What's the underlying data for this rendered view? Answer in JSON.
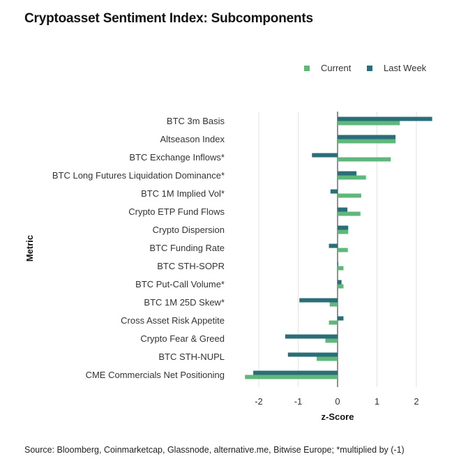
{
  "title": "Cryptoasset Sentiment Index: Subcomponents",
  "source": "Source: Bloomberg, Coinmarketcap, Glassnode, alternative.me, Bitwise Europe; *multiplied by (-1)",
  "colors": {
    "current": "#5fb77c",
    "last_week": "#2a6f77",
    "grid": "#e3e3e3",
    "axis": "#222222"
  },
  "chart_data": {
    "type": "bar",
    "orientation": "horizontal",
    "xlabel": "z-Score",
    "ylabel": "Metric",
    "xlim": [
      -2.25,
      2.45
    ],
    "xticks": [
      -2,
      -1,
      0,
      1,
      2
    ],
    "xtick_labels": [
      "-2",
      "-1",
      "0",
      "1",
      "2"
    ],
    "grid": "vertical",
    "legend": "top-right",
    "categories": [
      "BTC 3m Basis",
      "Altseason Index",
      "BTC Exchange Inflows*",
      "BTC Long Futures Liquidation Dominance*",
      "BTC 1M Implied Vol*",
      "Crypto ETP Fund Flows",
      "Crypto Dispersion",
      "BTC Funding Rate",
      "BTC STH-SOPR",
      "BTC Put-Call Volume*",
      "BTC 1M 25D Skew*",
      "Cross Asset Risk Appetite",
      "Crypto Fear & Greed",
      "BTC STH-NUPL",
      "CME Commercials Net Positioning"
    ],
    "series": [
      {
        "name": "Current",
        "values": [
          1.58,
          1.47,
          1.35,
          0.72,
          0.6,
          0.58,
          0.27,
          0.26,
          0.15,
          0.15,
          -0.2,
          -0.22,
          -0.31,
          -0.53,
          -2.35
        ]
      },
      {
        "name": "Last Week",
        "values": [
          2.4,
          1.47,
          -0.65,
          0.48,
          -0.18,
          0.25,
          0.27,
          -0.22,
          0.01,
          0.1,
          -0.97,
          0.15,
          -1.33,
          -1.26,
          -2.14
        ]
      }
    ]
  }
}
